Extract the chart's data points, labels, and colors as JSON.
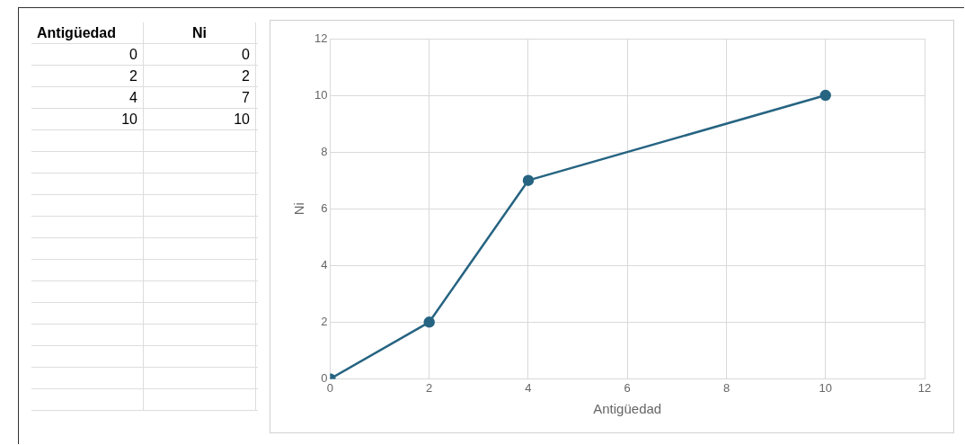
{
  "chart_data": [
    {
      "type": "other",
      "xlabel": "Antigüedad",
      "ylabel": "Ni",
      "categories": [
        "0",
        "2",
        "4",
        "10"
      ],
      "values": [
        0,
        2,
        7,
        10
      ],
      "data_labels": true
    },
    {
      "type": "line",
      "xlabel": "Antigüedad",
      "ylabel": "Ni",
      "x": [
        0,
        2,
        4,
        10
      ],
      "series": [
        {
          "color": "#266482",
          "values": [
            0,
            2,
            7,
            10
          ]
        }
      ],
      "xlim": [
        0,
        12
      ],
      "ylim": [
        0,
        12
      ],
      "xticks": [
        0,
        2,
        4,
        6,
        8,
        10,
        12
      ],
      "yticks": [
        0,
        2,
        4,
        6,
        8,
        10,
        12
      ],
      "grid": true,
      "marker": "circle"
    }
  ]
}
